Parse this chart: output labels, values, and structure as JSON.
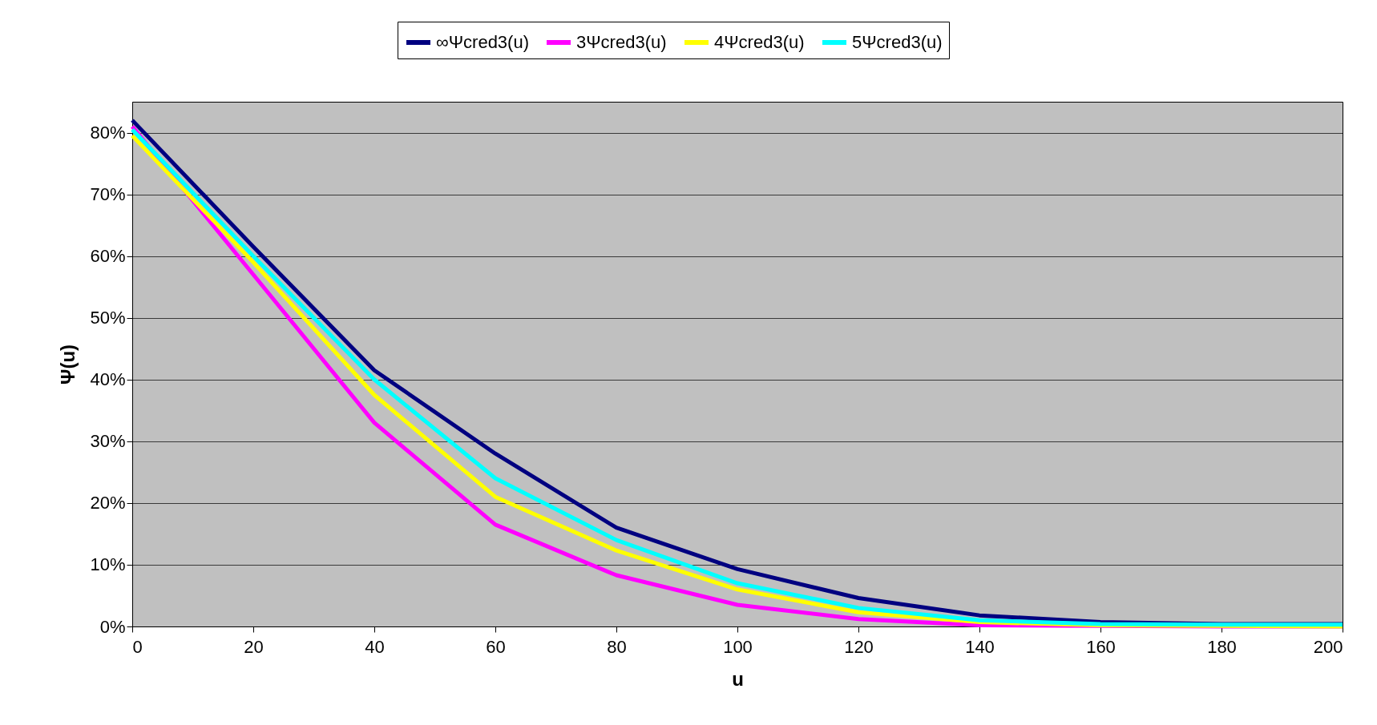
{
  "chart_data": {
    "type": "line",
    "xlabel": "u",
    "ylabel": "Ψ(u)",
    "x": [
      0,
      20,
      40,
      60,
      80,
      100,
      120,
      140,
      160,
      180,
      200
    ],
    "series": [
      {
        "name": "∞Ψcred3(u)",
        "color": "#000080",
        "values": [
          82,
          61.5,
          41.5,
          28,
          16,
          9.3,
          4.6,
          1.8,
          0.7,
          0.4,
          0.4
        ]
      },
      {
        "name": "3Ψcred3(u)",
        "color": "#ff00ff",
        "values": [
          81,
          57,
          33,
          16.5,
          8.3,
          3.5,
          1.2,
          0.2,
          0.1,
          0,
          0
        ]
      },
      {
        "name": "4Ψcred3(u)",
        "color": "#ffff00",
        "values": [
          79.5,
          59,
          37.5,
          21,
          12.3,
          6,
          2.3,
          0.7,
          0.2,
          0.1,
          0
        ]
      },
      {
        "name": "5Ψcred3(u)",
        "color": "#00ffff",
        "values": [
          80.5,
          60,
          40,
          24,
          14,
          7,
          3,
          1,
          0.4,
          0.3,
          0.3
        ]
      }
    ],
    "xlim": [
      0,
      200
    ],
    "xticks": [
      0,
      20,
      40,
      60,
      80,
      100,
      120,
      140,
      160,
      180,
      200
    ],
    "ylim": [
      0,
      85
    ],
    "yticks": [
      {
        "value": 0,
        "label": "0%"
      },
      {
        "value": 10,
        "label": "10%"
      },
      {
        "value": 20,
        "label": "20%"
      },
      {
        "value": 30,
        "label": "30%"
      },
      {
        "value": 40,
        "label": "40%"
      },
      {
        "value": 50,
        "label": "50%"
      },
      {
        "value": 60,
        "label": "60%"
      },
      {
        "value": 70,
        "label": "70%"
      },
      {
        "value": 80,
        "label": "80%"
      }
    ],
    "grid": "y",
    "legend": "top",
    "marker": "none",
    "line_style": "solid"
  }
}
